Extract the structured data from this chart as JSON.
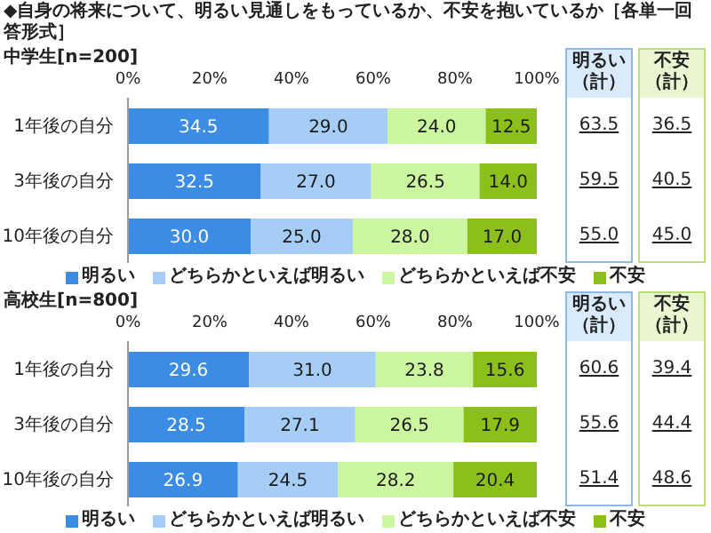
{
  "chart_data": [
    {
      "type": "bar",
      "orientation": "horizontal",
      "stacked": true,
      "title": "◆自身の将来について、明るい見通しをもっているか、不安を抱いているか［各単一回答形式］",
      "subtitle": "中学生[n=200]",
      "categories": [
        "1年後の自分",
        "3年後の自分",
        "10年後の自分"
      ],
      "xlim": [
        0,
        100
      ],
      "xticks": [
        {
          "value": 0,
          "label": "0%"
        },
        {
          "value": 20,
          "label": "20%"
        },
        {
          "value": 40,
          "label": "40%"
        },
        {
          "value": 60,
          "label": "60%"
        },
        {
          "value": 80,
          "label": "80%"
        },
        {
          "value": 100,
          "label": "100%"
        }
      ],
      "legend": "bottom",
      "series": [
        {
          "name": "明るい",
          "color": "#3c8ce6",
          "values": [
            34.5,
            32.5,
            30
          ],
          "value_labels": [
            "34.5",
            "32.5",
            "30.0"
          ]
        },
        {
          "name": "どちらかといえば明るい",
          "color": "#a6cdf5",
          "values": [
            29,
            27,
            25
          ],
          "value_labels": [
            "29.0",
            "27.0",
            "25.0"
          ]
        },
        {
          "name": "どちらかといえば不安",
          "color": "#ccf5a0",
          "values": [
            24,
            26.5,
            28
          ],
          "value_labels": [
            "24.0",
            "26.5",
            "28.0"
          ]
        },
        {
          "name": "不安",
          "color": "#8cbf1a",
          "values": [
            12.5,
            14,
            17
          ],
          "value_labels": [
            "12.5",
            "14.0",
            "17.0"
          ]
        }
      ],
      "annotations": [
        "明るい（計）",
        "63.5",
        "59.5",
        "55.0",
        "不安（計）",
        "36.5",
        "40.5",
        "45.0"
      ]
    },
    {
      "type": "bar",
      "orientation": "horizontal",
      "stacked": true,
      "subtitle": "高校生[n=800]",
      "categories": [
        "1年後の自分",
        "3年後の自分",
        "10年後の自分"
      ],
      "xlim": [
        0,
        100
      ],
      "xticks": [
        {
          "value": 0,
          "label": "0%"
        },
        {
          "value": 20,
          "label": "20%"
        },
        {
          "value": 40,
          "label": "40%"
        },
        {
          "value": 60,
          "label": "60%"
        },
        {
          "value": 80,
          "label": "80%"
        },
        {
          "value": 100,
          "label": "100%"
        }
      ],
      "legend": "bottom",
      "series": [
        {
          "name": "明るい",
          "color": "#3c8ce6",
          "values": [
            29.6,
            28.5,
            26.9
          ],
          "value_labels": [
            "29.6",
            "28.5",
            "26.9"
          ]
        },
        {
          "name": "どちらかといえば明るい",
          "color": "#a6cdf5",
          "values": [
            31,
            27.1,
            24.5
          ],
          "value_labels": [
            "31.0",
            "27.1",
            "24.5"
          ]
        },
        {
          "name": "どちらかといえば不安",
          "color": "#ccf5a0",
          "values": [
            23.8,
            26.5,
            28.2
          ],
          "value_labels": [
            "23.8",
            "26.5",
            "28.2"
          ]
        },
        {
          "name": "不安",
          "color": "#8cbf1a",
          "values": [
            15.6,
            17.9,
            20.4
          ],
          "value_labels": [
            "15.6",
            "17.9",
            "20.4"
          ]
        }
      ],
      "annotations": [
        "明るい（計）",
        "60.6",
        "55.6",
        "51.4",
        "不安（計）",
        "39.4",
        "44.4",
        "48.6"
      ]
    }
  ]
}
